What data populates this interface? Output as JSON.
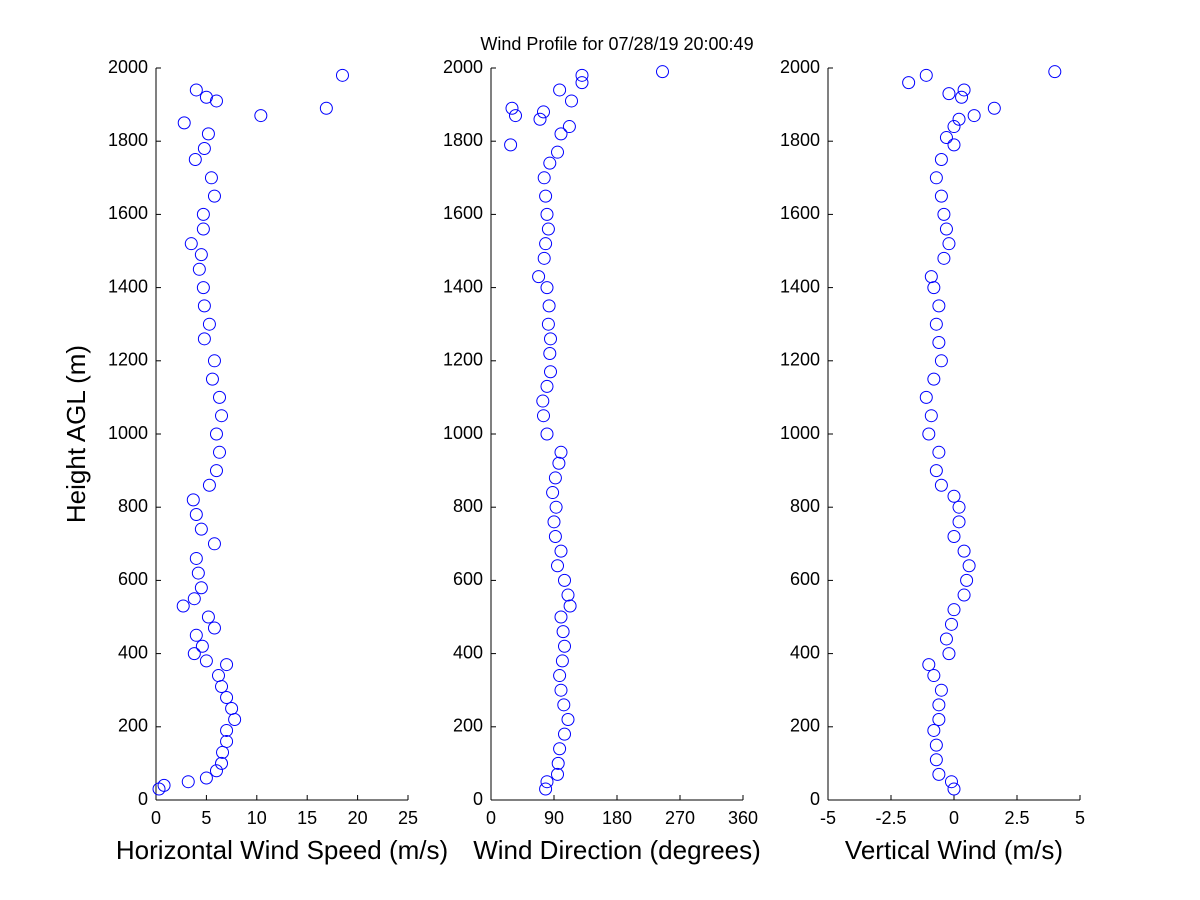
{
  "title": "Wind Profile for  07/28/19 20:00:49",
  "chart_data": [
    {
      "type": "scatter",
      "xlabel": "Horizontal Wind Speed (m/s)",
      "ylabel": "Height AGL (m)",
      "color": "#0000ff",
      "xlim": [
        0,
        25
      ],
      "xticks": [
        0,
        5,
        10,
        15,
        20,
        25
      ],
      "ylim": [
        0,
        2000
      ],
      "yticks": [
        0,
        200,
        400,
        600,
        800,
        1000,
        1200,
        1400,
        1600,
        1800,
        2000
      ],
      "x": [
        0.3,
        0.8,
        3.2,
        5,
        6,
        6.5,
        6.6,
        7,
        7,
        7.8,
        7.5,
        7,
        6.5,
        6.2,
        7,
        5,
        3.8,
        4.6,
        4,
        5.8,
        5.2,
        2.7,
        3.8,
        4.5,
        4.2,
        4,
        5.8,
        4.5,
        4,
        3.7,
        5.3,
        6,
        6.3,
        6,
        6.5,
        6.3,
        5.6,
        5.8,
        4.8,
        5.3,
        4.8,
        4.7,
        4.3,
        4.5,
        3.5,
        4.7,
        4.7,
        5.8,
        5.5,
        3.9,
        4.8,
        5.2,
        2.8,
        10.4,
        16.9,
        6,
        5,
        4,
        18.5
      ],
      "y": [
        30,
        40,
        50,
        60,
        80,
        100,
        130,
        160,
        190,
        220,
        250,
        280,
        310,
        340,
        370,
        380,
        400,
        420,
        450,
        470,
        500,
        530,
        550,
        580,
        620,
        660,
        700,
        740,
        780,
        820,
        860,
        900,
        950,
        1000,
        1050,
        1100,
        1150,
        1200,
        1260,
        1300,
        1350,
        1400,
        1450,
        1490,
        1520,
        1560,
        1600,
        1650,
        1700,
        1750,
        1780,
        1820,
        1850,
        1870,
        1890,
        1910,
        1920,
        1940,
        1980
      ]
    },
    {
      "type": "scatter",
      "xlabel": "Wind Direction (degrees)",
      "color": "#0000ff",
      "xlim": [
        0,
        360
      ],
      "xticks": [
        0,
        90,
        180,
        270,
        360
      ],
      "ylim": [
        0,
        2000
      ],
      "yticks": [
        0,
        200,
        400,
        600,
        800,
        1000,
        1200,
        1400,
        1600,
        1800,
        2000
      ],
      "x": [
        78,
        80,
        95,
        96,
        98,
        105,
        110,
        104,
        100,
        98,
        102,
        105,
        103,
        100,
        113,
        110,
        105,
        95,
        100,
        92,
        90,
        93,
        88,
        92,
        97,
        100,
        80,
        75,
        74,
        80,
        85,
        84,
        85,
        82,
        83,
        80,
        68,
        76,
        78,
        82,
        80,
        78,
        76,
        84,
        95,
        28,
        100,
        112,
        70,
        35,
        75,
        30,
        115,
        98,
        130,
        130,
        245
      ],
      "y": [
        30,
        50,
        70,
        100,
        140,
        180,
        220,
        260,
        300,
        340,
        380,
        420,
        460,
        500,
        530,
        560,
        600,
        640,
        680,
        720,
        760,
        800,
        840,
        880,
        920,
        950,
        1000,
        1050,
        1090,
        1130,
        1170,
        1220,
        1260,
        1300,
        1350,
        1400,
        1430,
        1480,
        1520,
        1560,
        1600,
        1650,
        1700,
        1740,
        1770,
        1790,
        1820,
        1840,
        1860,
        1870,
        1880,
        1890,
        1910,
        1940,
        1960,
        1980,
        1990
      ]
    },
    {
      "type": "scatter",
      "xlabel": "Vertical Wind (m/s)",
      "color": "#0000ff",
      "xlim": [
        -5,
        5
      ],
      "xticks": [
        -5,
        -2.5,
        0,
        2.5,
        5
      ],
      "ylim": [
        0,
        2000
      ],
      "yticks": [
        0,
        200,
        400,
        600,
        800,
        1000,
        1200,
        1400,
        1600,
        1800,
        2000
      ],
      "x": [
        0,
        -0.1,
        -0.6,
        -0.7,
        -0.7,
        -0.8,
        -0.6,
        -0.6,
        -0.5,
        -0.8,
        -1,
        -0.2,
        -0.3,
        -0.1,
        0,
        0.4,
        0.5,
        0.6,
        0.4,
        0,
        0.2,
        0.2,
        0,
        -0.5,
        -0.7,
        -0.6,
        -1,
        -0.9,
        -1.1,
        -0.8,
        -0.5,
        -0.6,
        -0.7,
        -0.6,
        -0.8,
        -0.9,
        -0.4,
        -0.2,
        -0.3,
        -0.4,
        -0.5,
        -0.7,
        -0.5,
        0,
        -0.3,
        0,
        0.2,
        0.8,
        1.6,
        0.3,
        -0.2,
        0.4,
        -1.8,
        -1.1,
        4
      ],
      "y": [
        30,
        50,
        70,
        110,
        150,
        190,
        220,
        260,
        300,
        340,
        370,
        400,
        440,
        480,
        520,
        560,
        600,
        640,
        680,
        720,
        760,
        800,
        830,
        860,
        900,
        950,
        1000,
        1050,
        1100,
        1150,
        1200,
        1250,
        1300,
        1350,
        1400,
        1430,
        1480,
        1520,
        1560,
        1600,
        1650,
        1700,
        1750,
        1790,
        1810,
        1840,
        1860,
        1870,
        1890,
        1920,
        1930,
        1940,
        1960,
        1980,
        1990
      ]
    }
  ]
}
